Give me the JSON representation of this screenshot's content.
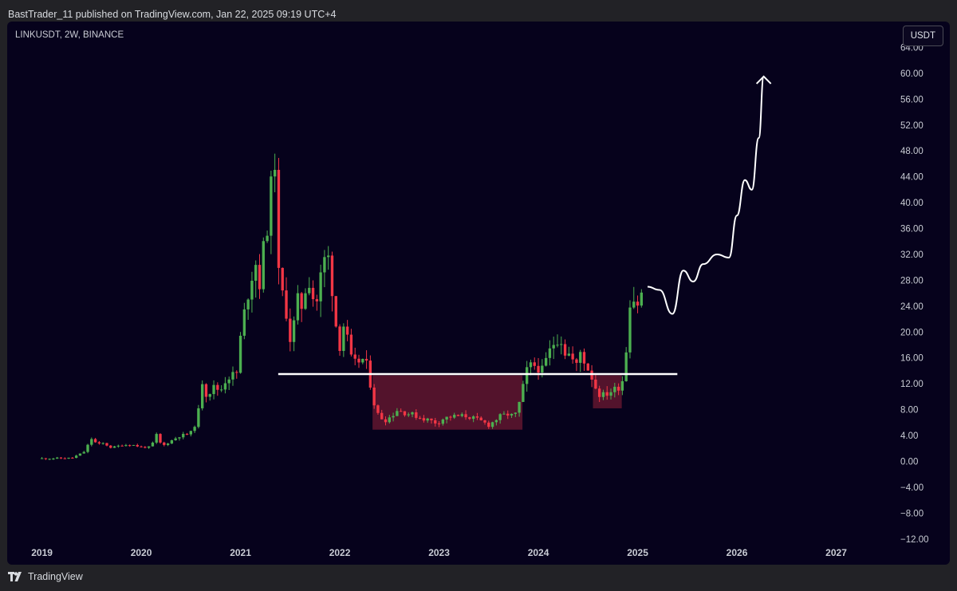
{
  "header": {
    "published": "BastTrader_11 published on TradingView.com, Jan 22, 2025 09:19 UTC+4"
  },
  "chart_header": {
    "symbol": "LINKUSDT, 2W, BINANCE",
    "currency": "USDT"
  },
  "footer": {
    "brand": "TradingView",
    "logo_icon": "tradingview-logo-icon"
  },
  "colors": {
    "background": "#06021c",
    "up": "#4caf50",
    "down": "#f23645",
    "zone": "#6e1a32",
    "annotation": "#ffffff",
    "axis_text": "#c9ccd4"
  },
  "chart_data": {
    "type": "candlestick",
    "symbol": "LINKUSDT",
    "interval": "2W",
    "exchange": "BINANCE",
    "y_axis": {
      "position": "right",
      "unit": "USDT",
      "ylim": [
        -14,
        68
      ],
      "ticks": [
        "64.00",
        "60.00",
        "56.00",
        "52.00",
        "48.00",
        "44.00",
        "40.00",
        "36.00",
        "32.00",
        "28.00",
        "24.00",
        "20.00",
        "16.00",
        "12.00",
        "8.00",
        "4.00",
        "0.00",
        "−4.00",
        "−8.00",
        "−12.00"
      ],
      "tick_values": [
        64,
        60,
        56,
        52,
        48,
        44,
        40,
        36,
        32,
        28,
        24,
        20,
        16,
        12,
        8,
        4,
        0,
        -4,
        -8,
        -12
      ]
    },
    "x_axis": {
      "xlim": [
        2018.65,
        2027.55
      ],
      "ticks": [
        "2019",
        "2020",
        "2021",
        "2022",
        "2023",
        "2024",
        "2025",
        "2026",
        "2027"
      ],
      "tick_values": [
        2019,
        2020,
        2021,
        2022,
        2023,
        2024,
        2025,
        2026,
        2027
      ]
    },
    "grid": false,
    "anchors": [
      [
        2019.0,
        0.45
      ],
      [
        2019.3,
        0.5
      ],
      [
        2019.42,
        1.4
      ],
      [
        2019.5,
        3.5
      ],
      [
        2019.56,
        2.6
      ],
      [
        2019.62,
        2.8
      ],
      [
        2019.7,
        2.1
      ],
      [
        2019.8,
        2.5
      ],
      [
        2019.9,
        2.6
      ],
      [
        2020.0,
        2.2
      ],
      [
        2020.1,
        2.2
      ],
      [
        2020.15,
        4.2
      ],
      [
        2020.21,
        2.3
      ],
      [
        2020.28,
        3.0
      ],
      [
        2020.38,
        3.9
      ],
      [
        2020.46,
        4.2
      ],
      [
        2020.52,
        4.6
      ],
      [
        2020.58,
        8.0
      ],
      [
        2020.62,
        13.0
      ],
      [
        2020.66,
        10.0
      ],
      [
        2020.72,
        11.5
      ],
      [
        2020.8,
        11.0
      ],
      [
        2020.86,
        13.0
      ],
      [
        2020.92,
        13.3
      ],
      [
        2020.98,
        13.8
      ],
      [
        2021.0,
        19.0
      ],
      [
        2021.05,
        24.0
      ],
      [
        2021.1,
        28.0
      ],
      [
        2021.15,
        31.0
      ],
      [
        2021.2,
        27.0
      ],
      [
        2021.25,
        36.0
      ],
      [
        2021.3,
        38.0
      ],
      [
        2021.32,
        48.0
      ],
      [
        2021.34,
        52.0
      ],
      [
        2021.36,
        36.0
      ],
      [
        2021.4,
        24.0
      ],
      [
        2021.44,
        27.0
      ],
      [
        2021.48,
        20.0
      ],
      [
        2021.52,
        18.0
      ],
      [
        2021.56,
        25.0
      ],
      [
        2021.62,
        24.0
      ],
      [
        2021.68,
        29.0
      ],
      [
        2021.72,
        26.0
      ],
      [
        2021.76,
        24.0
      ],
      [
        2021.8,
        28.0
      ],
      [
        2021.86,
        32.0
      ],
      [
        2021.9,
        31.0
      ],
      [
        2021.95,
        22.0
      ],
      [
        2022.0,
        18.0
      ],
      [
        2022.05,
        22.0
      ],
      [
        2022.1,
        16.0
      ],
      [
        2022.16,
        15.0
      ],
      [
        2022.22,
        16.0
      ],
      [
        2022.28,
        14.5
      ],
      [
        2022.33,
        10.0
      ],
      [
        2022.37,
        7.5
      ],
      [
        2022.45,
        6.3
      ],
      [
        2022.52,
        7.0
      ],
      [
        2022.58,
        8.0
      ],
      [
        2022.66,
        7.5
      ],
      [
        2022.74,
        7.2
      ],
      [
        2022.82,
        6.7
      ],
      [
        2022.9,
        6.4
      ],
      [
        2022.98,
        5.9
      ],
      [
        2023.05,
        6.7
      ],
      [
        2023.12,
        6.9
      ],
      [
        2023.2,
        7.0
      ],
      [
        2023.28,
        7.0
      ],
      [
        2023.36,
        6.6
      ],
      [
        2023.44,
        6.1
      ],
      [
        2023.5,
        5.6
      ],
      [
        2023.56,
        6.3
      ],
      [
        2023.62,
        7.0
      ],
      [
        2023.7,
        7.3
      ],
      [
        2023.76,
        6.9
      ],
      [
        2023.8,
        8.5
      ],
      [
        2023.84,
        11.0
      ],
      [
        2023.88,
        14.0
      ],
      [
        2023.94,
        15.0
      ],
      [
        2024.0,
        14.5
      ],
      [
        2024.04,
        14.0
      ],
      [
        2024.1,
        16.5
      ],
      [
        2024.16,
        18.5
      ],
      [
        2024.22,
        19.5
      ],
      [
        2024.26,
        17.0
      ],
      [
        2024.32,
        16.5
      ],
      [
        2024.38,
        14.5
      ],
      [
        2024.42,
        17.0
      ],
      [
        2024.48,
        15.0
      ],
      [
        2024.54,
        13.0
      ],
      [
        2024.6,
        10.5
      ],
      [
        2024.66,
        10.2
      ],
      [
        2024.72,
        10.8
      ],
      [
        2024.78,
        11.2
      ],
      [
        2024.84,
        12.0
      ],
      [
        2024.86,
        14.0
      ],
      [
        2024.9,
        19.5
      ],
      [
        2024.94,
        29.0
      ],
      [
        2024.98,
        22.0
      ],
      [
        2025.0,
        24.5
      ],
      [
        2025.03,
        25.5
      ],
      [
        2025.06,
        26.5
      ]
    ],
    "annotations": {
      "support_line": {
        "type": "horizontal_line",
        "price": 13.5,
        "x_range": [
          2021.38,
          2025.4
        ]
      },
      "accumulation_zone": {
        "type": "rectangle",
        "x_range": [
          2022.33,
          2023.84
        ],
        "y_range": [
          4.9,
          13.3
        ]
      },
      "recent_zone": {
        "type": "rectangle",
        "x_range": [
          2024.55,
          2024.84
        ],
        "y_range": [
          8.2,
          13.3
        ]
      },
      "projection": {
        "type": "path_arrow",
        "points": [
          [
            2025.1,
            27.0
          ],
          [
            2025.22,
            26.5
          ],
          [
            2025.35,
            22.8
          ],
          [
            2025.46,
            29.5
          ],
          [
            2025.56,
            27.8
          ],
          [
            2025.66,
            30.5
          ],
          [
            2025.8,
            32.0
          ],
          [
            2025.92,
            31.5
          ],
          [
            2026.0,
            38.0
          ],
          [
            2026.08,
            43.5
          ],
          [
            2026.15,
            42.0
          ],
          [
            2026.22,
            50.0
          ],
          [
            2026.27,
            59.5
          ]
        ]
      }
    }
  }
}
